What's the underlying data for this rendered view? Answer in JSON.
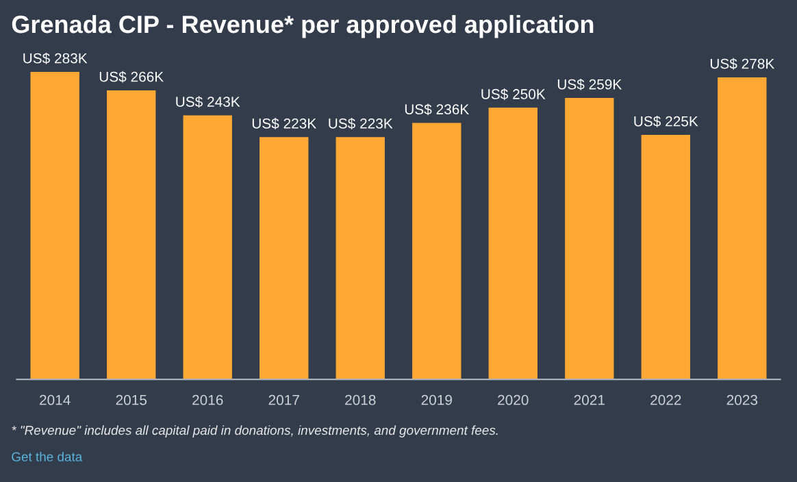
{
  "chart_data": {
    "type": "bar",
    "title": "Grenada CIP - Revenue* per approved application",
    "categories": [
      "2014",
      "2015",
      "2016",
      "2017",
      "2018",
      "2019",
      "2020",
      "2021",
      "2022",
      "2023"
    ],
    "values": [
      283000,
      266000,
      243000,
      223000,
      223000,
      236000,
      250000,
      259000,
      225000,
      278000
    ],
    "value_labels": [
      "US$ 283K",
      "US$ 266K",
      "US$ 243K",
      "US$ 223K",
      "US$ 223K",
      "US$ 236K",
      "US$ 250K",
      "US$ 259K",
      "US$ 225K",
      "US$ 278K"
    ],
    "color": "#ffa834",
    "grid": false,
    "legend": false,
    "annotations": [
      "* \"Revenue\" includes all capital paid in donations, investments, and government fees.",
      "Get the data"
    ]
  }
}
